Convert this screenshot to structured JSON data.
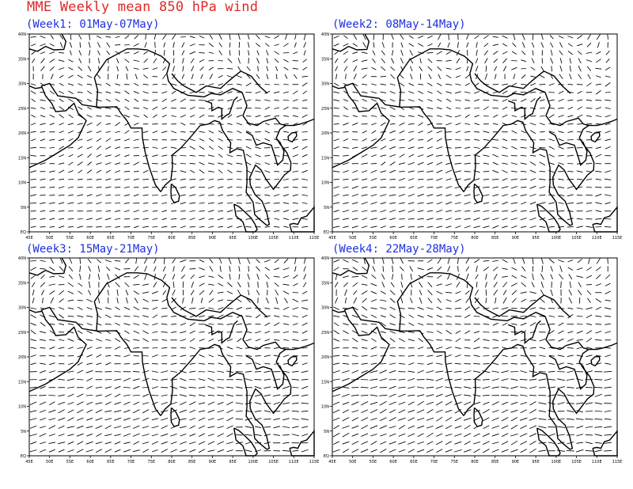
{
  "title": "MME Weekly mean 850 hPa wind",
  "colors": {
    "title": "#e02828",
    "panel_title": "#1f2fe0",
    "vectors": "#000000",
    "coast": "#000000"
  },
  "map": {
    "x_ticks": [
      "45E",
      "50E",
      "55E",
      "60E",
      "65E",
      "70E",
      "75E",
      "80E",
      "85E",
      "90E",
      "95E",
      "100E",
      "105E",
      "110E",
      "115E"
    ],
    "y_ticks": [
      "EQ",
      "5N",
      "10N",
      "15N",
      "20N",
      "25N",
      "30N",
      "35N",
      "40N"
    ],
    "lon_range": [
      45,
      115
    ],
    "lat_range": [
      0,
      40
    ]
  },
  "panels": [
    {
      "label": "(Week1: 01May-07May)"
    },
    {
      "label": "(Week2: 08May-14May)"
    },
    {
      "label": "(Week3: 15May-21May)"
    },
    {
      "label": "(Week4: 22May-28May)"
    }
  ]
}
